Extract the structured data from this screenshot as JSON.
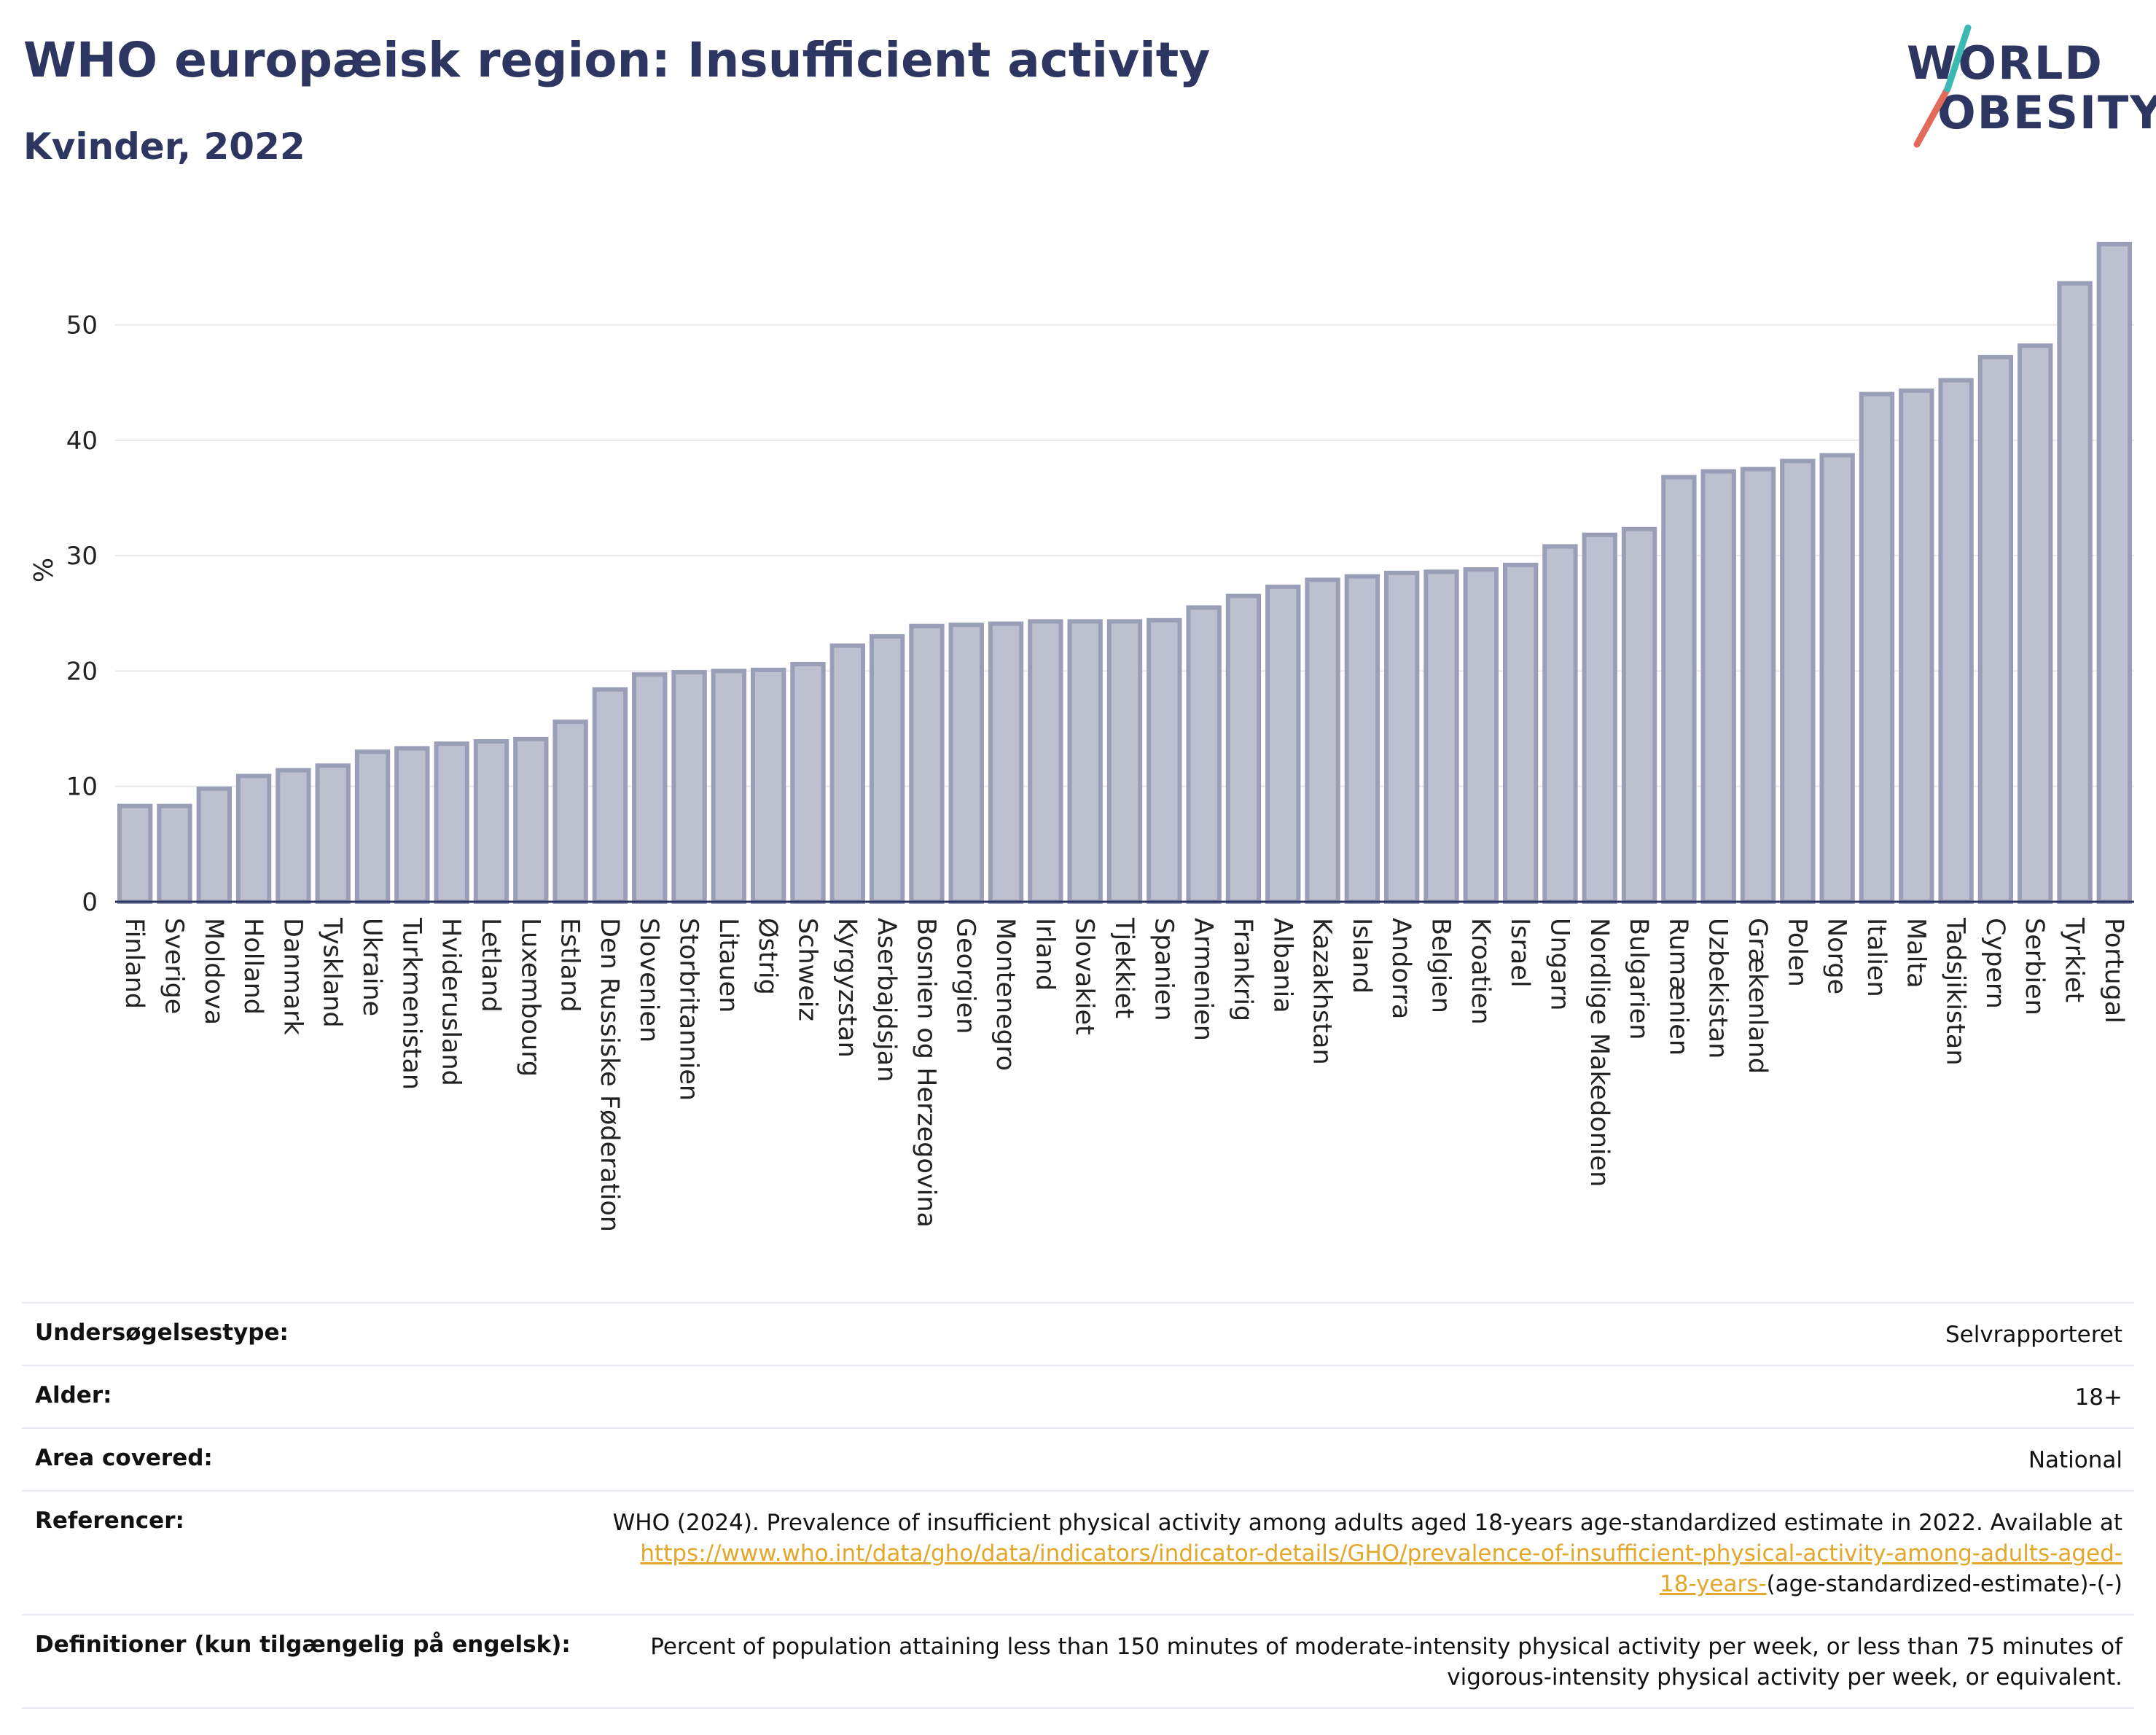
{
  "header": {
    "title": "WHO europæisk region: Insufficient activity",
    "subtitle": "Kvinder, 2022"
  },
  "logo": {
    "line1": "WORLD",
    "line2": "OBESITY",
    "accent_color": "#e36a5a",
    "accent_color_2": "#3cb8b2"
  },
  "colors": {
    "bar_fill": "#bdc0cf",
    "bar_stroke": "#9a9fb8",
    "axis": "#2d3561",
    "grid": "#e8e8ec"
  },
  "chart_data": {
    "type": "bar",
    "ylabel": "%",
    "xlabel": "",
    "ylim": [
      0,
      58
    ],
    "yticks": [
      0,
      10,
      20,
      30,
      40,
      50
    ],
    "grid": true,
    "categories": [
      "Finland",
      "Sverige",
      "Moldova",
      "Holland",
      "Danmark",
      "Tyskland",
      "Ukraine",
      "Turkmenistan",
      "Hviderusland",
      "Letland",
      "Luxembourg",
      "Estland",
      "Den Russiske Føderation",
      "Slovenien",
      "Storbritannien",
      "Litauen",
      "Østrig",
      "Schweiz",
      "Kyrgyzstan",
      "Aserbajdsjan",
      "Bosnien og Herzegovina",
      "Georgien",
      "Montenegro",
      "Irland",
      "Slovakiet",
      "Tjekkiet",
      "Spanien",
      "Armenien",
      "Frankrig",
      "Albania",
      "Kazakhstan",
      "Island",
      "Andorra",
      "Belgien",
      "Kroatien",
      "Israel",
      "Ungarn",
      "Nordlige Makedonien",
      "Bulgarien",
      "Rumænien",
      "Uzbekistan",
      "Grækenland",
      "Polen",
      "Norge",
      "Italien",
      "Malta",
      "Tadsjikistan",
      "Cypern",
      "Serbien",
      "Tyrkiet",
      "Portugal"
    ],
    "values": [
      8.3,
      8.3,
      9.8,
      10.9,
      11.4,
      11.8,
      13.0,
      13.3,
      13.7,
      13.9,
      14.1,
      15.6,
      18.4,
      19.7,
      19.9,
      20.0,
      20.1,
      20.6,
      22.2,
      23.0,
      23.9,
      24.0,
      24.1,
      24.3,
      24.3,
      24.3,
      24.4,
      25.5,
      26.5,
      27.3,
      27.9,
      28.2,
      28.5,
      28.6,
      28.8,
      29.2,
      30.8,
      31.8,
      32.3,
      36.8,
      37.3,
      37.5,
      38.2,
      38.7,
      44.0,
      44.3,
      45.2,
      47.2,
      48.2,
      53.6,
      57.0
    ]
  },
  "info": {
    "survey_label": "Undersøgelsestype:",
    "survey_value": "Selvrapporteret",
    "age_label": "Alder:",
    "age_value": "18+",
    "area_label": "Area covered:",
    "area_value": "National",
    "ref_label": "Referencer:",
    "ref_text": "WHO (2024). Prevalence of insufficient physical activity among adults aged 18-years age-standardized estimate in 2022. Available at",
    "ref_link_1": "https://www.who.int/data/gho/data/indicators/indicator-details/GHO/prevalence-of-insufficient-physical-activity-among-adults-aged-",
    "ref_link_2": "18-years-",
    "ref_tail": "(age-standardized-estimate)-(-)",
    "def_label": "Definitioner (kun tilgængelig på engelsk):",
    "def_line1": "Percent of population attaining less than 150 minutes of moderate-intensity physical activity per week, or less than 75 minutes of",
    "def_line2": "vigorous-intensity physical activity per week, or equivalent."
  }
}
